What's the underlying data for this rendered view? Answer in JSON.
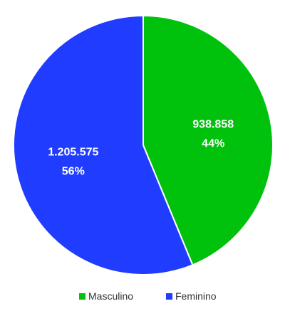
{
  "chart_data": {
    "type": "pie",
    "slices": [
      {
        "name": "Masculino",
        "value": 938858,
        "value_label": "938.858",
        "percent_label": "44%",
        "color": "#00c20c"
      },
      {
        "name": "Feminino",
        "value": 1205575,
        "value_label": "1.205.575",
        "percent_label": "56%",
        "color": "#1f3cff"
      }
    ],
    "legend": {
      "position": "bottom"
    },
    "start_angle": "12-o'clock",
    "direction": "clockwise"
  }
}
